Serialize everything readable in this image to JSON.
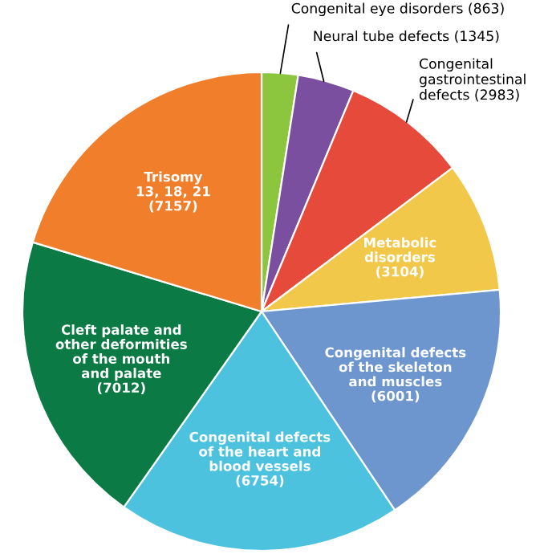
{
  "chart_data": {
    "type": "pie",
    "categories": [
      "Congenital eye disorders",
      "Neural tube defects",
      "Congenital\ngastrointestinal\ndefects",
      "Metabolic\ndisorders",
      "Congenital defects\nof the skeleton\nand muscles",
      "Congenital defects\nof the heart and\nblood vessels",
      "Cleft palate and\nother deformities\nof the mouth\nand palate",
      "Trisomy\n13, 18, 21"
    ],
    "values": [
      863,
      1345,
      2983,
      3104,
      6001,
      6754,
      7012,
      7157
    ],
    "value_labels": [
      "(863)",
      "(1345)",
      "(2983)",
      "(3104)",
      "(6001)",
      "(6754)",
      "(7012)",
      "(7157)"
    ],
    "colors": [
      "#8cc63e",
      "#7a4f9f",
      "#e64a3b",
      "#f2c84b",
      "#6d96cf",
      "#4cc2de",
      "#0b7a45",
      "#f07e2a"
    ]
  }
}
